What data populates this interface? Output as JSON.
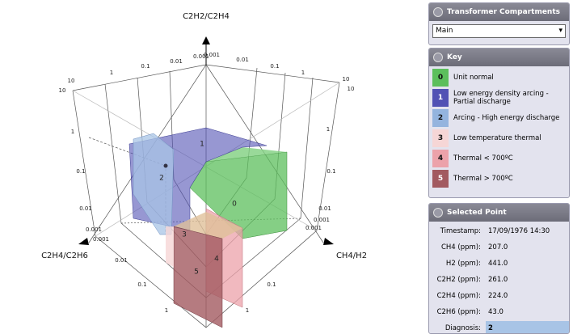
{
  "chart": {
    "axis_labels": {
      "vertical": "C2H2/C2H4",
      "left": "C2H4/C2H6",
      "right": "CH4/H2"
    },
    "tick_labels": [
      "0.001",
      "0.001",
      "0.01",
      "0.1",
      "1",
      "10",
      "10",
      "0.01",
      "0.1",
      "1",
      "10",
      "10",
      "1",
      "0.1",
      "0.01",
      "0.001",
      "0.001",
      "1",
      "0.1",
      "0.01",
      "0.001",
      "0.001",
      "0.01",
      "0.1",
      "1",
      "1",
      "0.1"
    ],
    "zone_labels": [
      "0",
      "1",
      "2",
      "3",
      "4",
      "5"
    ]
  },
  "compartments": {
    "title": "Transformer Compartments",
    "selected": "Main"
  },
  "key": {
    "title": "Key",
    "items": [
      {
        "code": "0",
        "label": "Unit normal",
        "color": "#5cbf5c"
      },
      {
        "code": "1",
        "label": "Low energy density arcing - Partial discharge",
        "color": "#5252b4"
      },
      {
        "code": "2",
        "label": "Arcing - High energy discharge",
        "color": "#94b4de"
      },
      {
        "code": "3",
        "label": "Low temperature thermal",
        "color": "#f6d6d6"
      },
      {
        "code": "4",
        "label": "Thermal < 700ºC",
        "color": "#eca2aa"
      },
      {
        "code": "5",
        "label": "Thermal > 700ºC",
        "color": "#a25a60"
      }
    ]
  },
  "selected_point": {
    "title": "Selected Point",
    "fields": [
      {
        "label": "Timestamp:",
        "value": "17/09/1976 14:30"
      },
      {
        "label": "CH4 (ppm):",
        "value": "207.0"
      },
      {
        "label": "H2 (ppm):",
        "value": "441.0"
      },
      {
        "label": "C2H2 (ppm):",
        "value": "261.0"
      },
      {
        "label": "C2H4 (ppm):",
        "value": "224.0"
      },
      {
        "label": "C2H6 (ppm):",
        "value": "43.0"
      },
      {
        "label": "Diagnosis:",
        "value": "2"
      }
    ]
  }
}
